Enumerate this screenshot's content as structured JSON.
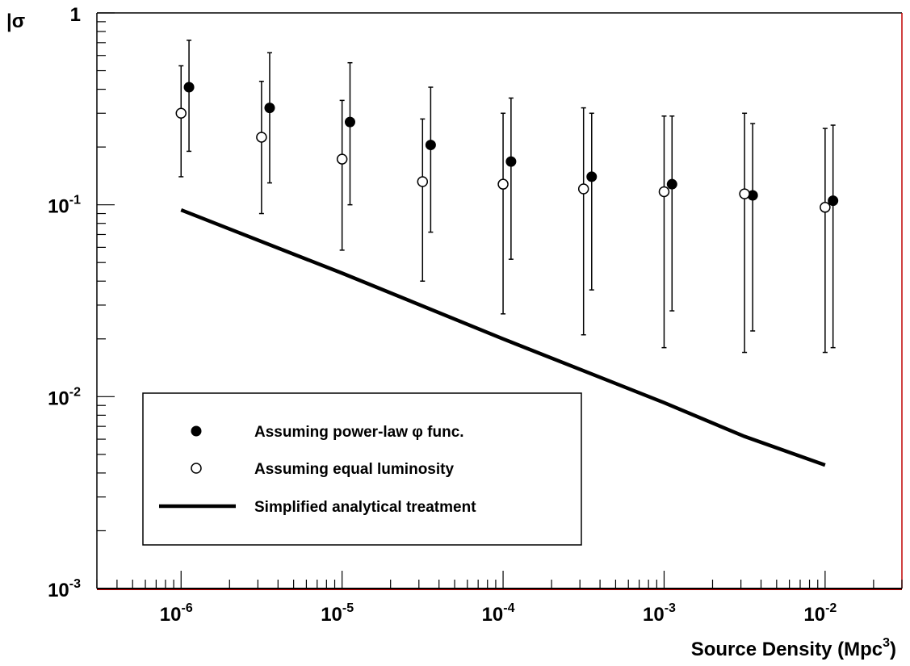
{
  "chart_data": {
    "type": "scatter",
    "title": "",
    "xlabel": "Source Density (Mpc",
    "xlabel_sup": "3",
    "xlabel_end": ")",
    "ylabel": "|σ",
    "xscale": "log",
    "yscale": "log",
    "xlim": [
      3e-07,
      0.03
    ],
    "ylim": [
      0.001,
      1
    ],
    "grid": false,
    "legend_position": "bottom-left",
    "x_ticks": [
      {
        "base": "10",
        "exp": "-6",
        "value": 1e-06
      },
      {
        "base": "10",
        "exp": "-5",
        "value": 1e-05
      },
      {
        "base": "10",
        "exp": "-4",
        "value": 0.0001
      },
      {
        "base": "10",
        "exp": "-3",
        "value": 0.001
      },
      {
        "base": "10",
        "exp": "-2",
        "value": 0.01
      }
    ],
    "y_ticks": [
      {
        "base": "1",
        "exp": "",
        "value": 1
      },
      {
        "base": "10",
        "exp": "-1",
        "value": 0.1
      },
      {
        "base": "10",
        "exp": "-2",
        "value": 0.01
      },
      {
        "base": "10",
        "exp": "-3",
        "value": 0.001
      }
    ],
    "series": [
      {
        "name": "Assuming power-law φ func.",
        "marker": "filled-circle",
        "color": "#000000",
        "x": [
          1.12e-06,
          3.55e-06,
          1.12e-05,
          3.55e-05,
          0.000112,
          0.000355,
          0.00112,
          0.00355,
          0.0112
        ],
        "y": [
          0.41,
          0.32,
          0.27,
          0.205,
          0.168,
          0.14,
          0.128,
          0.112,
          0.105
        ],
        "y_low": [
          0.19,
          0.13,
          0.1,
          0.072,
          0.052,
          0.036,
          0.028,
          0.022,
          0.018
        ],
        "y_high": [
          0.72,
          0.62,
          0.55,
          0.41,
          0.36,
          0.3,
          0.29,
          0.265,
          0.26
        ]
      },
      {
        "name": "Assuming equal luminosity",
        "marker": "open-circle",
        "color": "#000000",
        "x": [
          1e-06,
          3.16e-06,
          1e-05,
          3.16e-05,
          0.0001,
          0.000316,
          0.001,
          0.00316,
          0.01
        ],
        "y": [
          0.3,
          0.225,
          0.173,
          0.132,
          0.128,
          0.121,
          0.117,
          0.114,
          0.097
        ],
        "y_low": [
          0.14,
          0.09,
          0.058,
          0.04,
          0.027,
          0.021,
          0.018,
          0.017,
          0.017
        ],
        "y_high": [
          0.53,
          0.44,
          0.35,
          0.28,
          0.3,
          0.32,
          0.29,
          0.3,
          0.25
        ]
      },
      {
        "name": "Simplified analytical treatment",
        "marker": "line",
        "color": "#000000",
        "x": [
          1e-06,
          1e-05,
          0.0001,
          0.001,
          0.00316,
          0.01
        ],
        "y": [
          0.094,
          0.044,
          0.02,
          0.0093,
          0.0062,
          0.0044
        ]
      }
    ],
    "colors": {
      "background": "#ffffff",
      "axis": "#000000",
      "frame_right": "#c00000"
    }
  }
}
